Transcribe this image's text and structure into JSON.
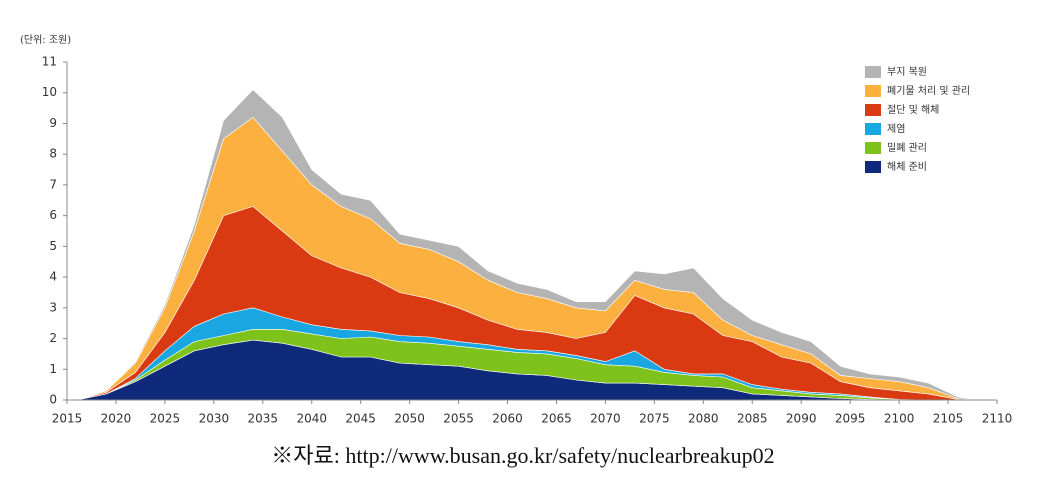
{
  "chart_data": {
    "type": "stacked_area",
    "unit_label": "(단위: 조원)",
    "source": "※자료: http://www.busan.go.kr/safety/nuclearbreakup02",
    "x": [
      2016,
      2019,
      2022,
      2025,
      2028,
      2031,
      2034,
      2037,
      2040,
      2043,
      2046,
      2049,
      2052,
      2055,
      2058,
      2061,
      2064,
      2067,
      2070,
      2073,
      2076,
      2079,
      2082,
      2085,
      2088,
      2091,
      2094,
      2097,
      2100,
      2103,
      2106,
      2108
    ],
    "series": [
      {
        "name": "해체 준비",
        "color": "#0f2a7a",
        "values": [
          0,
          0.2,
          0.6,
          1.1,
          1.6,
          1.8,
          1.95,
          1.85,
          1.65,
          1.4,
          1.4,
          1.2,
          1.15,
          1.1,
          0.95,
          0.85,
          0.8,
          0.65,
          0.55,
          0.55,
          0.5,
          0.45,
          0.4,
          0.2,
          0.15,
          0.1,
          0.05,
          0.02,
          0,
          0,
          0,
          0
        ]
      },
      {
        "name": "밀폐 관리",
        "color": "#80c21c",
        "values": [
          0,
          0,
          0.05,
          0.2,
          0.3,
          0.3,
          0.35,
          0.45,
          0.5,
          0.6,
          0.65,
          0.7,
          0.7,
          0.65,
          0.7,
          0.7,
          0.7,
          0.7,
          0.6,
          0.55,
          0.4,
          0.35,
          0.35,
          0.2,
          0.15,
          0.1,
          0.1,
          0.05,
          0.02,
          0,
          0,
          0
        ]
      },
      {
        "name": "제염",
        "color": "#1aa6e0",
        "values": [
          0,
          0,
          0.05,
          0.3,
          0.5,
          0.7,
          0.7,
          0.4,
          0.3,
          0.3,
          0.2,
          0.2,
          0.2,
          0.15,
          0.15,
          0.1,
          0.1,
          0.1,
          0.1,
          0.5,
          0.1,
          0.05,
          0.1,
          0.1,
          0.05,
          0.05,
          0.05,
          0.03,
          0,
          0,
          0,
          0
        ]
      },
      {
        "name": "절단 및 해체",
        "color": "#d93a12",
        "values": [
          0,
          0.05,
          0.2,
          0.6,
          1.5,
          3.2,
          3.3,
          2.8,
          2.25,
          2.0,
          1.75,
          1.4,
          1.25,
          1.1,
          0.8,
          0.65,
          0.6,
          0.55,
          0.95,
          1.8,
          2.0,
          1.95,
          1.25,
          1.4,
          1.05,
          0.95,
          0.4,
          0.3,
          0.28,
          0.2,
          0.02,
          0
        ]
      },
      {
        "name": "폐기물 처리 및 관리",
        "color": "#fbb040",
        "values": [
          0,
          0.05,
          0.3,
          0.8,
          1.6,
          2.5,
          2.9,
          2.6,
          2.3,
          2.0,
          1.9,
          1.6,
          1.6,
          1.5,
          1.3,
          1.2,
          1.1,
          1.0,
          0.7,
          0.5,
          0.6,
          0.7,
          0.5,
          0.2,
          0.4,
          0.3,
          0.2,
          0.3,
          0.3,
          0.2,
          0.03,
          0
        ]
      },
      {
        "name": "부지 복원",
        "color": "#b4b4b4",
        "values": [
          0,
          0,
          0.05,
          0.1,
          0.2,
          0.6,
          0.9,
          1.1,
          0.5,
          0.4,
          0.6,
          0.3,
          0.3,
          0.5,
          0.3,
          0.3,
          0.3,
          0.2,
          0.3,
          0.3,
          0.5,
          0.8,
          0.7,
          0.5,
          0.4,
          0.4,
          0.3,
          0.15,
          0.15,
          0.15,
          0.05,
          0
        ]
      }
    ],
    "xlim": [
      2015,
      2110
    ],
    "xticks": [
      2015,
      2020,
      2025,
      2030,
      2035,
      2040,
      2045,
      2050,
      2055,
      2060,
      2065,
      2070,
      2075,
      2080,
      2085,
      2090,
      2095,
      2100,
      2105,
      2110
    ],
    "ylim": [
      0,
      11
    ],
    "yticks": [
      0,
      1,
      2,
      3,
      4,
      5,
      6,
      7,
      8,
      9,
      10,
      11
    ],
    "grid": false,
    "legend": "upper right"
  }
}
